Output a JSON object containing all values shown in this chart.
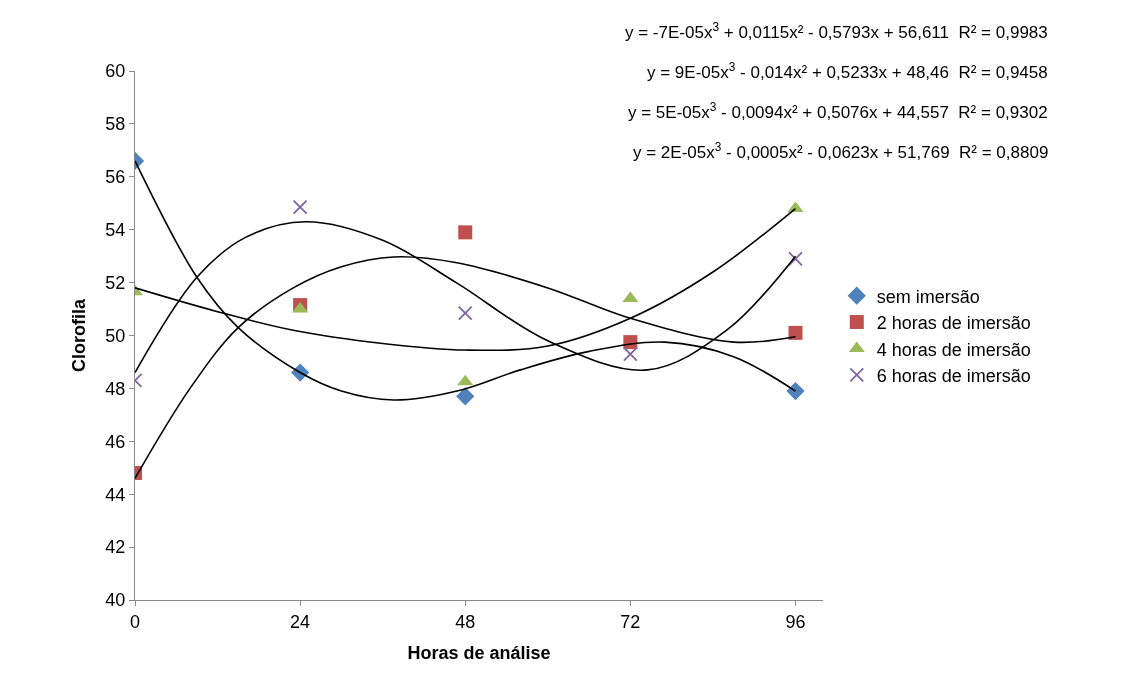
{
  "chart_data": {
    "type": "scatter",
    "xlabel": "Horas de análise",
    "ylabel": "Clorofila",
    "x": [
      0,
      24,
      48,
      72,
      96
    ],
    "xlim": [
      0,
      100
    ],
    "xticks": [
      0,
      24,
      48,
      72,
      96
    ],
    "ylim": [
      40,
      60
    ],
    "yticks": [
      40,
      42,
      44,
      46,
      48,
      50,
      52,
      54,
      56,
      58,
      60
    ],
    "legend": "right",
    "series": [
      {
        "name": "sem imersão",
        "color": "#4f81bd",
        "marker": "diamond",
        "values": [
          56.6,
          48.6,
          47.7,
          null,
          47.9
        ]
      },
      {
        "name": "2 horas de imersão",
        "color": "#c0504d",
        "marker": "square",
        "values": [
          44.8,
          51.15,
          53.9,
          49.75,
          50.1
        ]
      },
      {
        "name": "4 horas de imersão",
        "color": "#9bbb59",
        "marker": "triangle",
        "values": [
          51.65,
          51.0,
          48.25,
          51.4,
          54.8
        ]
      },
      {
        "name": "6 horas de imersão",
        "color": "#8064a2",
        "marker": "cross",
        "values": [
          48.3,
          54.85,
          50.85,
          49.3,
          52.9
        ]
      },
      {
        "type": "line",
        "color": "#000000",
        "x": [
          0,
          9,
          15,
          24,
          30,
          37.6,
          46.8,
          56,
          66,
          77,
          87,
          96
        ],
        "values": [
          56.6,
          52.2,
          50.3,
          48.6,
          47.9,
          47.56,
          47.9,
          48.7,
          49.4,
          49.75,
          49.2,
          47.9
        ]
      },
      {
        "type": "line",
        "color": "#000000",
        "x": [
          0,
          8,
          15,
          23,
          30,
          37.6,
          46.8,
          60,
          72,
          87,
          96
        ],
        "values": [
          44.6,
          48.0,
          50.3,
          51.8,
          52.6,
          52.97,
          52.75,
          51.8,
          50.65,
          49.75,
          49.95
        ]
      },
      {
        "type": "line",
        "color": "#000000",
        "x": [
          0,
          12,
          23,
          36,
          48,
          60,
          72,
          84,
          96
        ],
        "values": [
          51.8,
          50.9,
          50.2,
          49.7,
          49.45,
          49.6,
          50.65,
          52.4,
          54.8
        ]
      },
      {
        "type": "line",
        "color": "#000000",
        "x": [
          0,
          9,
          16,
          24.8,
          36,
          46.8,
          60,
          74.5,
          86,
          96
        ],
        "values": [
          48.6,
          52.2,
          53.7,
          54.3,
          53.6,
          51.98,
          49.8,
          48.7,
          50.2,
          53.0
        ]
      }
    ],
    "annotations": [
      "y = -7E-05x$^{3}$ + 0,0115x² - 0,5793x + 56,611  R² = 0,9983",
      "y = 9E-05x$^{3}$ - 0,014x² + 0,5233x + 48,46  R² = 0,9458",
      "y = 5E-05x$^{3}$ - 0,0094x² + 0,5076x + 44,557  R² = 0,9302",
      "y = 2E-05x$^{3}$ - 0,0005x² - 0,0623x + 51,769  R² = 0,8809"
    ]
  }
}
